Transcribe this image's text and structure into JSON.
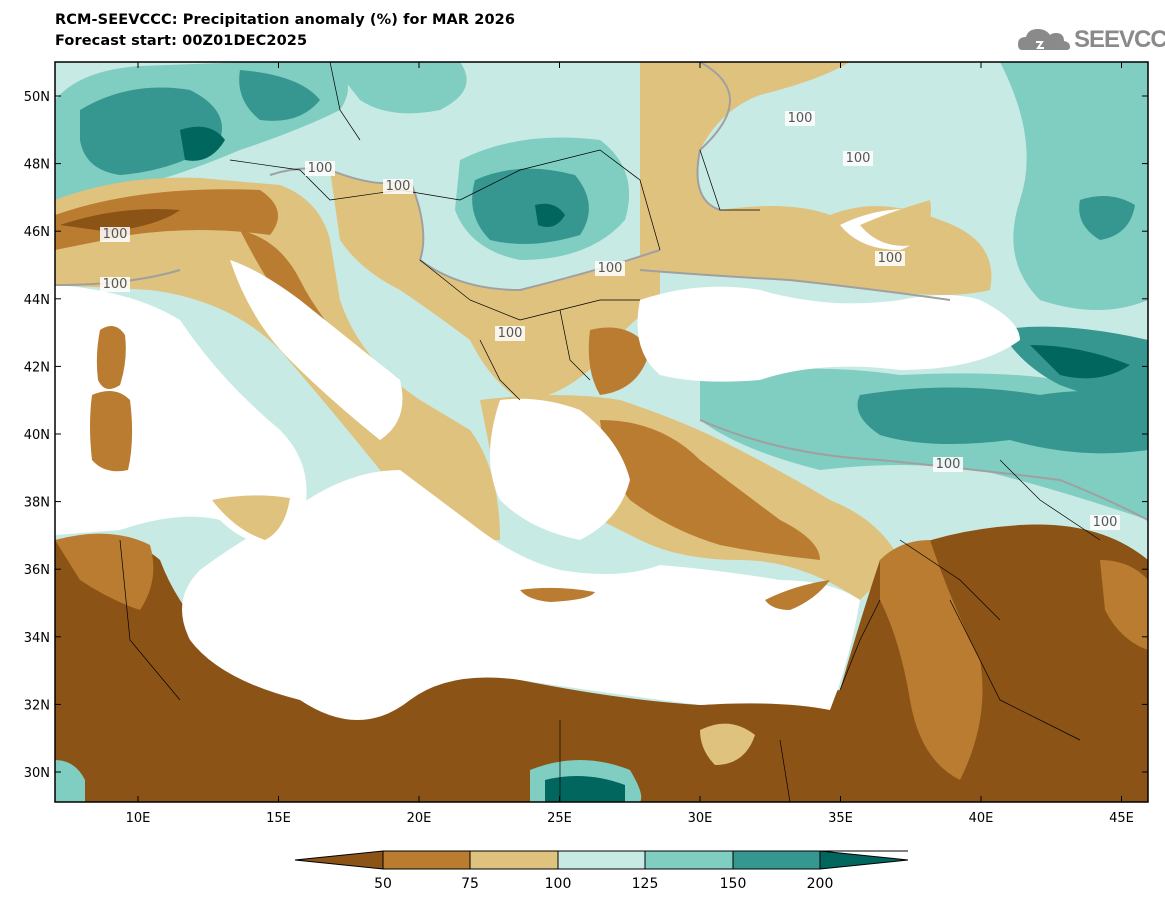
{
  "header": {
    "title": "RCM-SEEVCCC: Precipitation anomaly (%) for MAR 2026",
    "subtitle": "Forecast start: 00Z01DEC2025",
    "logo_text": "SEEVCCC"
  },
  "colors": {
    "below_50": "#8c5316",
    "c50_75": "#b97c30",
    "c75_100": "#dfc27d",
    "c100_125": "#c7eae5",
    "c125_150": "#80cdc1",
    "c150_200": "#35978f",
    "above_200": "#01665e",
    "contour_line": "#a0a0a0",
    "sea": "#ffffff"
  },
  "map": {
    "lat_labels": [
      "50N",
      "48N",
      "46N",
      "44N",
      "42N",
      "40N",
      "38N",
      "36N",
      "34N",
      "32N",
      "30N"
    ],
    "lon_labels": [
      "10E",
      "15E",
      "20E",
      "25E",
      "30E",
      "35E",
      "40E",
      "45E"
    ],
    "contour_labels": [
      "100",
      "100",
      "100",
      "100",
      "100",
      "100",
      "100",
      "100",
      "100",
      "100",
      "100"
    ]
  },
  "colorbar": {
    "labels": [
      "50",
      "75",
      "100",
      "125",
      "150",
      "200"
    ]
  }
}
